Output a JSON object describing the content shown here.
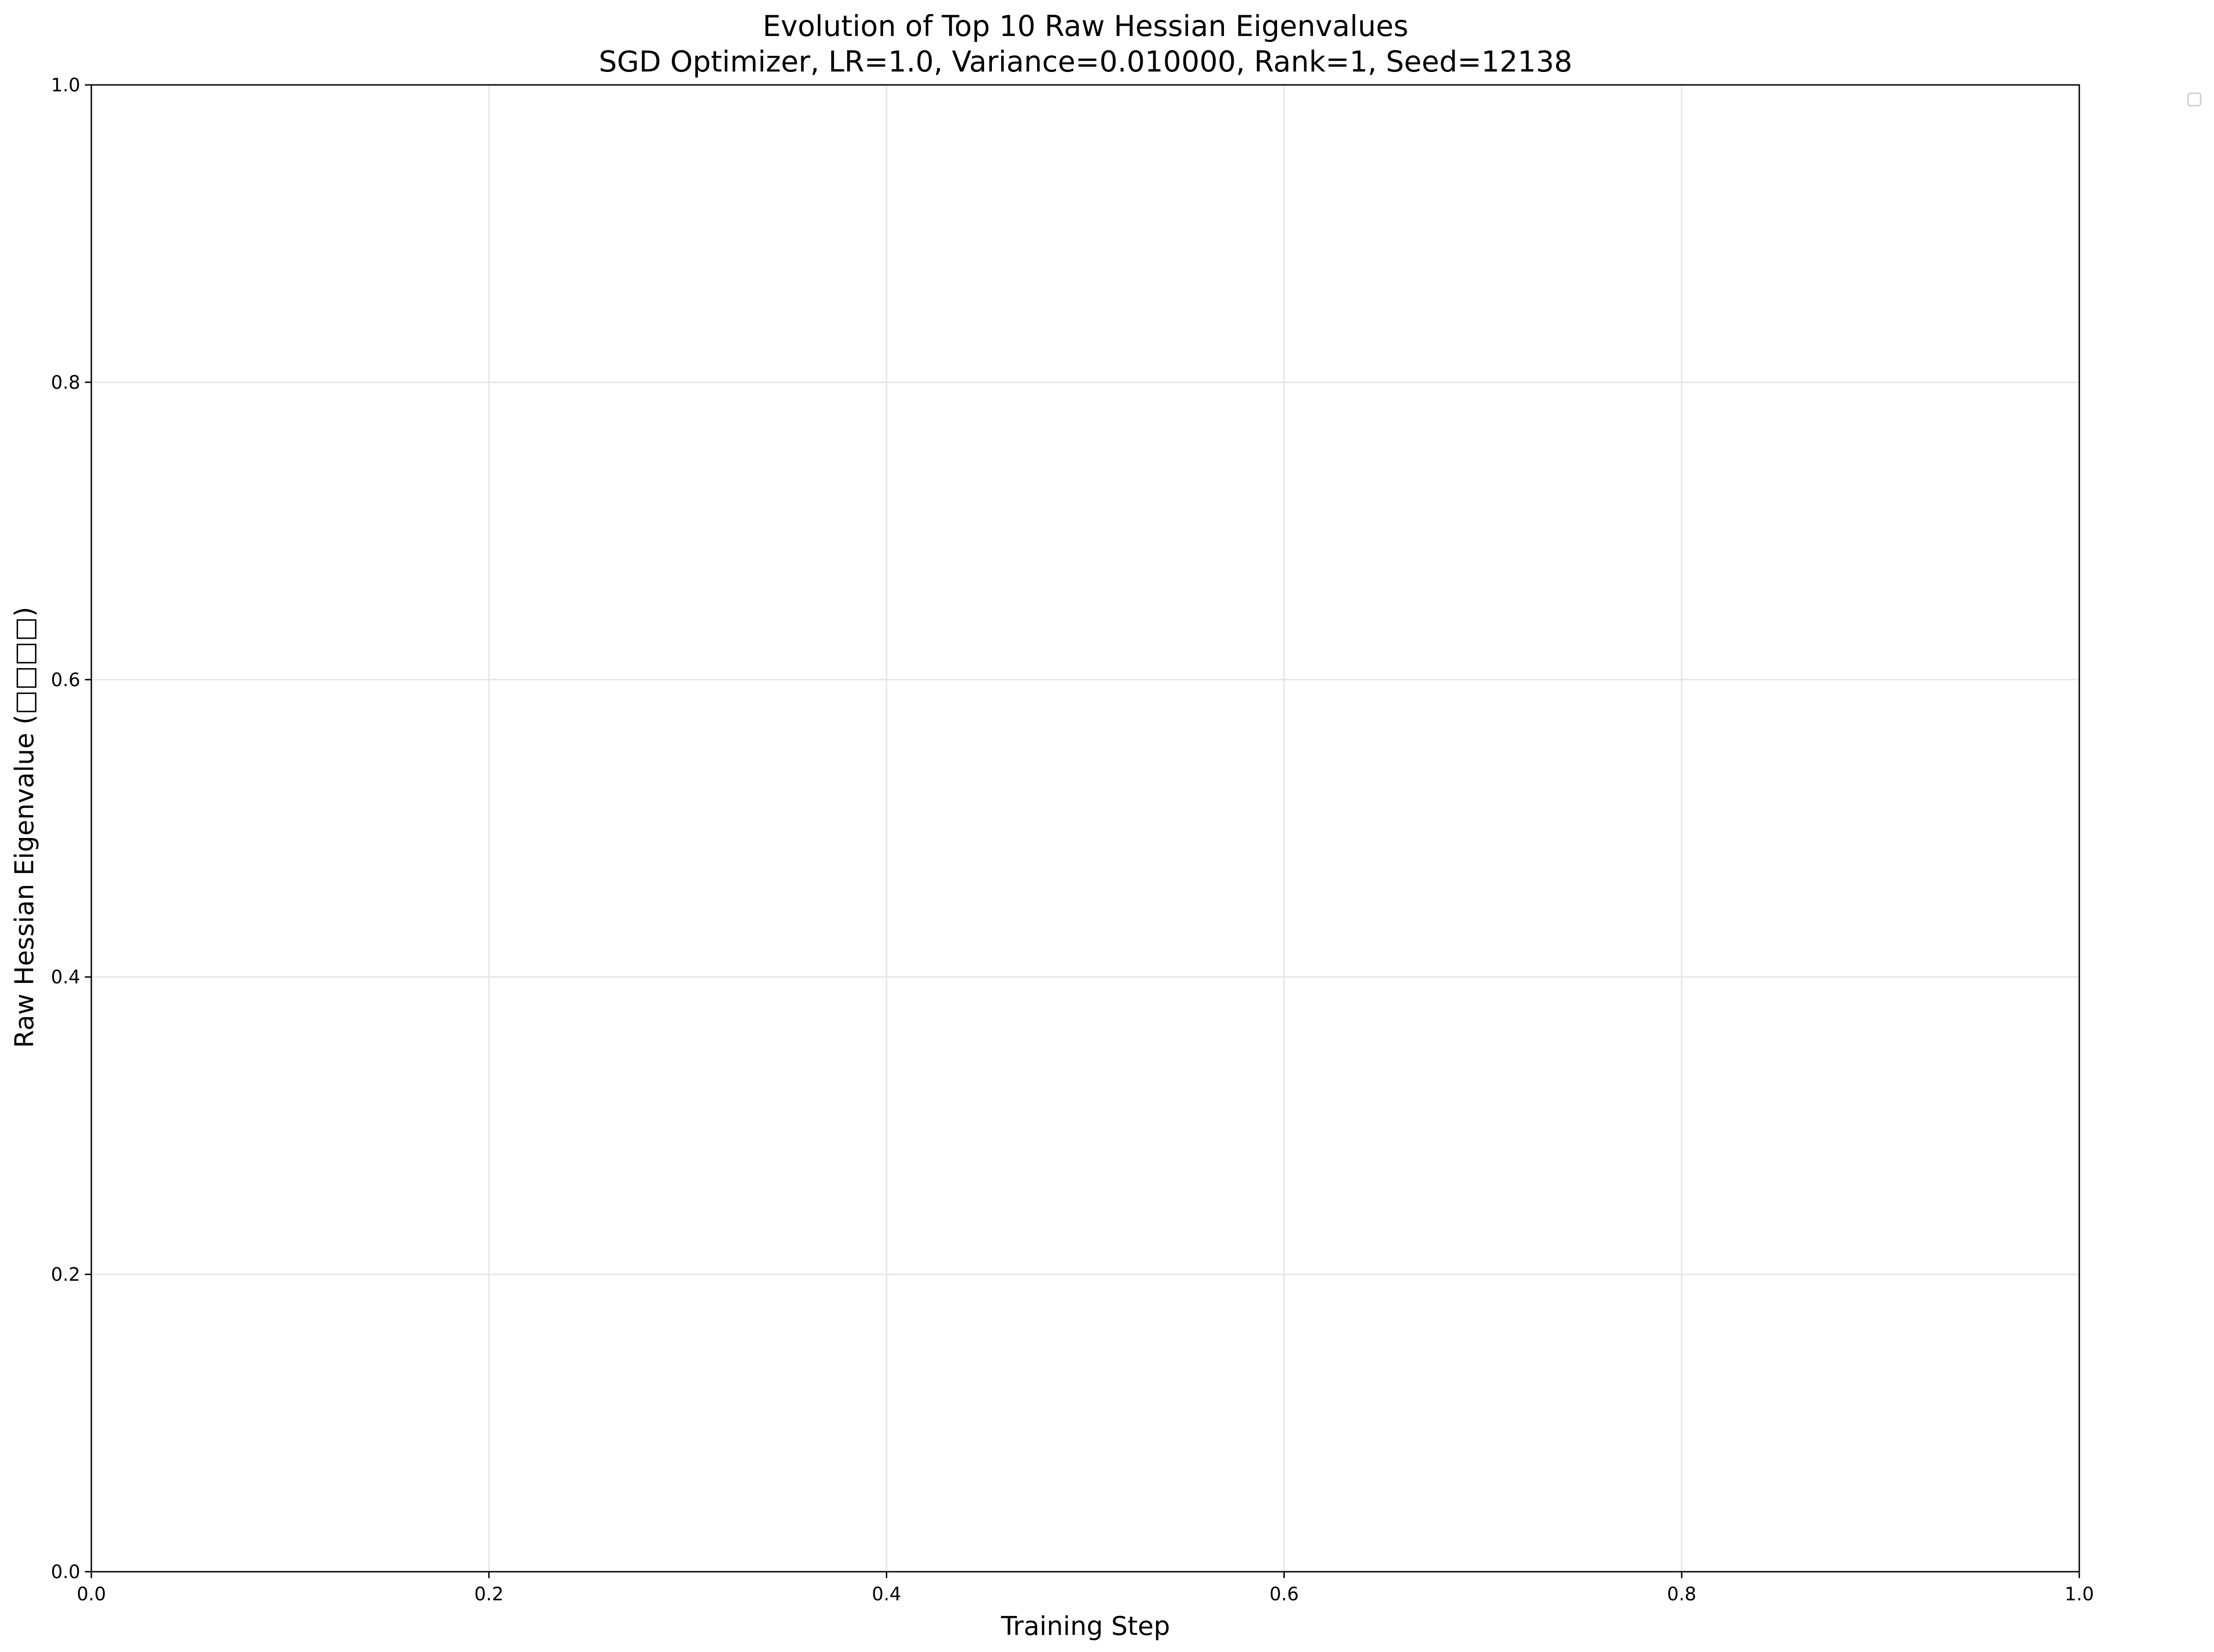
{
  "chart_data": {
    "type": "line",
    "title": "Evolution of Top 10 Raw Hessian Eigenvalues",
    "subtitle": "SGD Optimizer, LR=1.0, Variance=0.010000, Rank=1, Seed=12138",
    "xlabel": "Training Step",
    "ylabel": "Raw Hessian Eigenvalue (□□□□)",
    "xlim": [
      0.0,
      1.0
    ],
    "ylim": [
      0.0,
      1.0
    ],
    "xticks": [
      "0.0",
      "0.2",
      "0.4",
      "0.6",
      "0.8",
      "1.0"
    ],
    "yticks": [
      "0.0",
      "0.2",
      "0.4",
      "0.6",
      "0.8",
      "1.0"
    ],
    "grid": true,
    "legend": {
      "placement": "outside-top-right",
      "entries": []
    },
    "series": []
  },
  "colors": {
    "axes": "#000000",
    "grid": "#e5e5e5",
    "legend_border": "#cccccc",
    "background": "#ffffff"
  }
}
